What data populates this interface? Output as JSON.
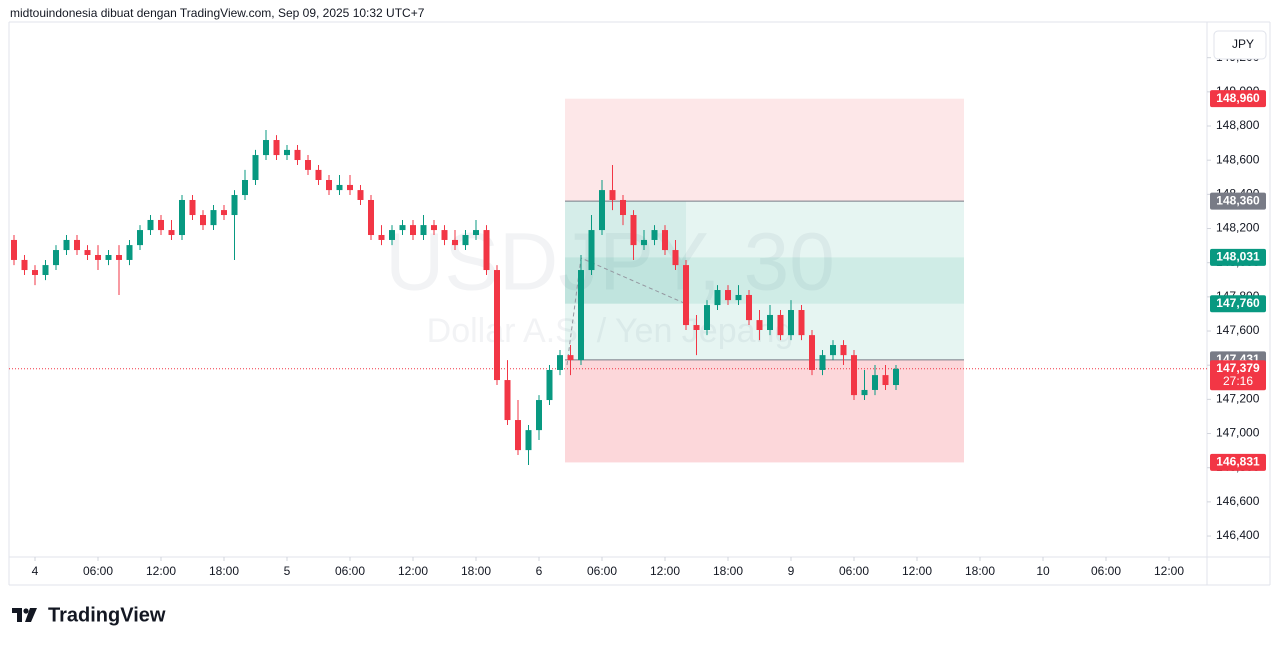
{
  "header": "midtouindonesia dibuat dengan TradingView.com, Sep 09, 2025 10:32 UTC+7",
  "logo": "TradingView",
  "currency_button": "JPY",
  "chart_data": {
    "type": "candlestick",
    "watermark": "USDJPY, 30",
    "watermark_subtitle": "Dollar A.S. / Yen Jepang",
    "up_color": "#089981",
    "down_color": "#f23645",
    "categories": [
      null,
      null,
      "4",
      null,
      null,
      null,
      null,
      null,
      "06:00",
      null,
      null,
      null,
      null,
      null,
      "12:00",
      null,
      null,
      null,
      null,
      null,
      "18:00",
      null,
      null,
      null,
      null,
      null,
      "5",
      null,
      null,
      null,
      null,
      null,
      "06:00",
      null,
      null,
      null,
      null,
      null,
      "12:00",
      null,
      null,
      null,
      null,
      null,
      "18:00",
      null,
      null,
      null,
      null,
      null,
      "6",
      null,
      null,
      null,
      null,
      null,
      "06:00",
      null,
      null,
      null,
      null,
      null,
      "12:00",
      null,
      null,
      null,
      null,
      null,
      "18:00",
      null,
      null,
      null,
      null,
      null,
      "9",
      null,
      null,
      null,
      null,
      null,
      "06:00",
      null,
      null,
      null,
      null,
      null,
      "12:00",
      null,
      null,
      null,
      null,
      null,
      "18:00",
      null,
      null,
      null,
      null,
      null,
      "10",
      null,
      null,
      null,
      null,
      null,
      "06:00",
      null,
      null,
      null,
      null,
      null,
      "12:00",
      null,
      null,
      null
    ],
    "open": [
      148.133,
      148.016,
      147.957,
      147.928,
      147.986,
      148.074,
      148.133,
      148.074,
      148.045,
      148.016,
      148.045,
      148.016,
      148.103,
      148.191,
      148.25,
      148.191,
      148.162,
      148.367,
      148.279,
      148.22,
      148.308,
      148.279,
      148.396,
      148.484,
      148.63,
      148.718,
      148.63,
      148.66,
      148.601,
      148.543,
      148.484,
      148.425,
      148.455,
      148.425,
      148.367,
      148.162,
      148.133,
      148.191,
      148.22,
      148.162,
      148.22,
      148.191,
      148.133,
      148.103,
      148.162,
      148.191,
      147.957,
      147.313,
      147.079,
      146.903,
      147.02,
      147.196,
      147.372,
      147.459,
      147.43,
      147.957,
      148.191,
      148.425,
      148.367,
      148.279,
      148.103,
      148.133,
      148.191,
      148.074,
      147.986,
      147.635,
      147.606,
      147.752,
      147.84,
      147.781,
      147.811,
      147.664,
      147.606,
      147.694,
      147.576,
      147.723,
      147.576,
      147.372,
      147.459,
      147.518,
      147.459,
      147.225,
      147.255,
      147.342,
      147.284,
      null,
      null,
      null,
      null,
      null,
      null,
      null,
      null,
      null,
      null,
      null,
      null,
      null,
      null,
      null,
      null,
      null,
      null,
      null,
      null,
      null,
      null,
      null,
      null,
      null,
      null,
      null,
      null,
      null
    ],
    "high": [
      148.162,
      148.045,
      147.986,
      148.016,
      148.103,
      148.162,
      148.162,
      148.103,
      148.103,
      148.074,
      148.103,
      148.133,
      148.22,
      148.279,
      148.279,
      148.25,
      148.396,
      148.396,
      148.308,
      148.338,
      148.338,
      148.425,
      148.543,
      148.66,
      148.777,
      148.747,
      148.689,
      148.689,
      148.63,
      148.572,
      148.513,
      148.513,
      148.513,
      148.455,
      148.396,
      148.22,
      148.22,
      148.25,
      148.25,
      148.279,
      148.25,
      148.22,
      148.191,
      148.191,
      148.25,
      148.22,
      147.986,
      147.43,
      147.196,
      147.05,
      147.225,
      147.401,
      147.489,
      147.518,
      148.045,
      148.279,
      148.484,
      148.572,
      148.396,
      148.308,
      148.191,
      148.22,
      148.22,
      148.133,
      148.016,
      147.694,
      147.781,
      147.869,
      147.869,
      147.869,
      147.84,
      147.723,
      147.752,
      147.723,
      147.781,
      147.752,
      147.606,
      147.489,
      147.547,
      147.547,
      147.489,
      147.372,
      147.401,
      147.401,
      147.401,
      null,
      null,
      null,
      null,
      null,
      null,
      null,
      null,
      null,
      null,
      null,
      null,
      null,
      null,
      null,
      null,
      null,
      null,
      null,
      null,
      null,
      null,
      null,
      null,
      null,
      null,
      null,
      null,
      null
    ],
    "low": [
      147.986,
      147.928,
      147.869,
      147.898,
      147.957,
      148.045,
      148.045,
      148.016,
      147.957,
      147.986,
      147.811,
      147.986,
      148.074,
      148.162,
      148.162,
      148.133,
      148.133,
      148.25,
      148.191,
      148.191,
      148.25,
      148.016,
      148.367,
      148.455,
      148.601,
      148.601,
      148.601,
      148.572,
      148.513,
      148.455,
      148.396,
      148.396,
      148.396,
      148.338,
      148.133,
      148.103,
      148.103,
      148.162,
      148.133,
      148.133,
      148.162,
      148.103,
      148.074,
      148.074,
      148.133,
      147.928,
      147.284,
      147.05,
      146.874,
      146.816,
      146.962,
      147.167,
      147.342,
      147.342,
      147.401,
      147.928,
      148.162,
      148.308,
      148.22,
      148.016,
      148.074,
      148.103,
      148.045,
      147.957,
      147.606,
      147.459,
      147.576,
      147.723,
      147.752,
      147.752,
      147.635,
      147.547,
      147.576,
      147.547,
      147.547,
      147.547,
      147.342,
      147.342,
      147.43,
      147.401,
      147.196,
      147.196,
      147.225,
      147.255,
      147.255,
      null,
      null,
      null,
      null,
      null,
      null,
      null,
      null,
      null,
      null,
      null,
      null,
      null,
      null,
      null,
      null,
      null,
      null,
      null,
      null,
      null,
      null,
      null,
      null,
      null,
      null,
      null,
      null,
      null
    ],
    "close": [
      148.016,
      147.957,
      147.928,
      147.986,
      148.074,
      148.133,
      148.074,
      148.045,
      148.016,
      148.045,
      148.016,
      148.103,
      148.191,
      148.25,
      148.191,
      148.162,
      148.367,
      148.279,
      148.22,
      148.308,
      148.279,
      148.396,
      148.484,
      148.63,
      148.718,
      148.63,
      148.66,
      148.601,
      148.543,
      148.484,
      148.425,
      148.455,
      148.425,
      148.367,
      148.162,
      148.133,
      148.191,
      148.22,
      148.162,
      148.22,
      148.191,
      148.133,
      148.103,
      148.162,
      148.191,
      147.957,
      147.313,
      147.079,
      146.903,
      147.02,
      147.196,
      147.372,
      147.459,
      147.43,
      147.957,
      148.191,
      148.425,
      148.367,
      148.279,
      148.103,
      148.133,
      148.191,
      148.074,
      147.986,
      147.635,
      147.606,
      147.752,
      147.84,
      147.781,
      147.811,
      147.664,
      147.606,
      147.694,
      147.576,
      147.723,
      147.576,
      147.372,
      147.459,
      147.518,
      147.459,
      147.225,
      147.255,
      147.342,
      147.284,
      147.379,
      null,
      null,
      null,
      null,
      null,
      null,
      null,
      null,
      null,
      null,
      null,
      null,
      null,
      null,
      null,
      null,
      null,
      null,
      null,
      null,
      null,
      null,
      null,
      null,
      null,
      null,
      null,
      null,
      null
    ],
    "ylim": [
      146.289,
      149.362
    ],
    "yticks": [
      {
        "value": 146.4,
        "label": "146,400"
      },
      {
        "value": 146.6,
        "label": "146,600"
      },
      {
        "value": 146.8,
        "label": "146,800"
      },
      {
        "value": 147.0,
        "label": "147,000"
      },
      {
        "value": 147.2,
        "label": "147,200"
      },
      {
        "value": 147.4,
        "label": "147,400"
      },
      {
        "value": 147.6,
        "label": "147,600"
      },
      {
        "value": 147.8,
        "label": "147,800"
      },
      {
        "value": 148.0,
        "label": "148,000"
      },
      {
        "value": 148.2,
        "label": "148,200"
      },
      {
        "value": 148.4,
        "label": "148,400"
      },
      {
        "value": 148.6,
        "label": "148,600"
      },
      {
        "value": 148.8,
        "label": "148,800"
      },
      {
        "value": 149.0,
        "label": "149,000"
      },
      {
        "value": 149.2,
        "label": "149,200"
      }
    ],
    "price_labels": [
      {
        "value": 148.96,
        "label": "148,960",
        "color": "#f23645"
      },
      {
        "value": 148.36,
        "label": "148,360",
        "color": "#787b86"
      },
      {
        "value": 148.031,
        "label": "148,031",
        "color": "#089981"
      },
      {
        "value": 147.76,
        "label": "147,760",
        "color": "#089981"
      },
      {
        "value": 147.431,
        "label": "147,431",
        "color": "#787b86"
      },
      {
        "value": 147.379,
        "label": "147,379",
        "color": "#f23645",
        "countdown": "27:16"
      },
      {
        "value": 146.831,
        "label": "146,831",
        "color": "#f23645"
      }
    ]
  }
}
